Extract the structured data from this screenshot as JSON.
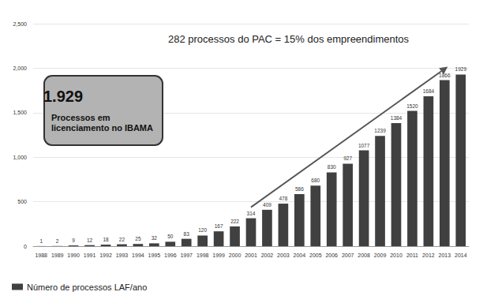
{
  "chart_data": {
    "type": "bar",
    "title": "282 processos do PAC = 15% dos empreendimentos",
    "annotations": [
      "1.929",
      "Processos em licenciamento no IBAMA"
    ],
    "categories": [
      "1988",
      "1989",
      "1990",
      "1991",
      "1992",
      "1993",
      "1994",
      "1995",
      "1996",
      "1997",
      "1998",
      "1999",
      "2000",
      "2001",
      "2002",
      "2003",
      "2004",
      "2005",
      "2006",
      "2007",
      "2008",
      "2009",
      "2010",
      "2011",
      "2012",
      "2013",
      "2014"
    ],
    "series": [
      {
        "name": "Número de processos LAF/ano",
        "color": "#404040",
        "values": [
          1,
          2,
          9,
          12,
          18,
          22,
          25,
          32,
          50,
          83,
          120,
          167,
          222,
          314,
          409,
          478,
          586,
          680,
          830,
          927,
          1077,
          1239,
          1384,
          1520,
          1684,
          1866,
          1929
        ]
      }
    ],
    "ylim": [
      0,
      2500
    ],
    "yticks": [
      0,
      500,
      1000,
      1500,
      2000,
      2500
    ],
    "grid": true,
    "data_labels": true,
    "legend": "bottom-left"
  }
}
